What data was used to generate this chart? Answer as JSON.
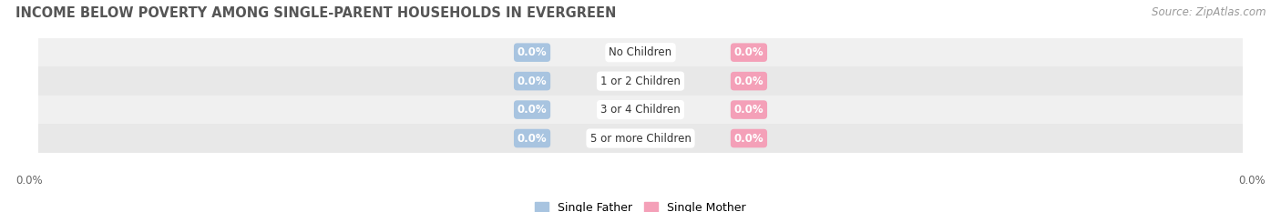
{
  "title": "INCOME BELOW POVERTY AMONG SINGLE-PARENT HOUSEHOLDS IN EVERGREEN",
  "source": "Source: ZipAtlas.com",
  "categories": [
    "No Children",
    "1 or 2 Children",
    "3 or 4 Children",
    "5 or more Children"
  ],
  "single_father_values": [
    0.0,
    0.0,
    0.0,
    0.0
  ],
  "single_mother_values": [
    0.0,
    0.0,
    0.0,
    0.0
  ],
  "father_color": "#a8c4e0",
  "mother_color": "#f4a0b8",
  "background_color": "#ffffff",
  "row_bg_colors": [
    "#f0f0f0",
    "#e8e8e8"
  ],
  "title_fontsize": 10.5,
  "source_fontsize": 8.5,
  "axis_label_left": "0.0%",
  "axis_label_right": "0.0%",
  "legend_labels": [
    "Single Father",
    "Single Mother"
  ]
}
